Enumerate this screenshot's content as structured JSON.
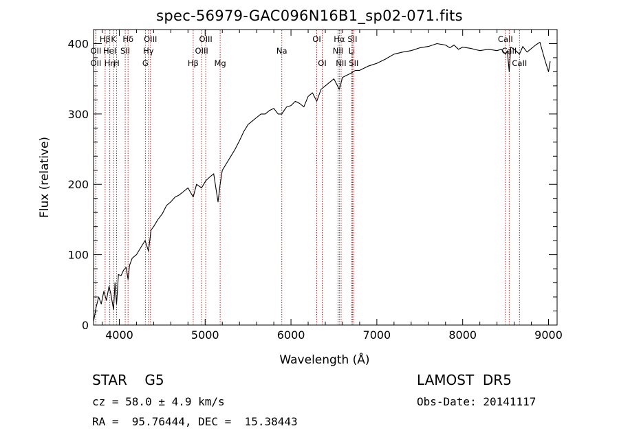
{
  "chart_data": {
    "type": "line",
    "title": "spec-56979-GAC096N16B1_sp02-071.fits",
    "xlabel": "Wavelength (Å)",
    "ylabel": "Flux (relative)",
    "xlim": [
      3700,
      9100
    ],
    "ylim": [
      0,
      420
    ],
    "xticks": [
      4000,
      5000,
      6000,
      7000,
      8000,
      9000
    ],
    "yticks": [
      0,
      100,
      200,
      300,
      400
    ],
    "line_color": "#000000",
    "marker_color": "#b22222",
    "grid": false,
    "series": [
      {
        "x": [
          3700,
          3730,
          3760,
          3790,
          3820,
          3850,
          3880,
          3900,
          3933,
          3950,
          3968,
          3990,
          4020,
          4050,
          4080,
          4102,
          4120,
          4150,
          4200,
          4250,
          4300,
          4340,
          4370,
          4400,
          4450,
          4500,
          4550,
          4600,
          4650,
          4700,
          4750,
          4800,
          4861,
          4900,
          4959,
          5007,
          5050,
          5100,
          5150,
          5175,
          5200,
          5250,
          5300,
          5350,
          5400,
          5450,
          5500,
          5550,
          5600,
          5650,
          5700,
          5750,
          5800,
          5850,
          5893,
          5920,
          5950,
          6000,
          6050,
          6100,
          6150,
          6200,
          6250,
          6300,
          6350,
          6400,
          6450,
          6500,
          6563,
          6600,
          6650,
          6700,
          6750,
          6800,
          6850,
          6900,
          6950,
          7000,
          7100,
          7200,
          7300,
          7400,
          7500,
          7600,
          7700,
          7800,
          7850,
          7900,
          7950,
          8000,
          8100,
          8200,
          8300,
          8400,
          8450,
          8498,
          8520,
          8542,
          8560,
          8600,
          8662,
          8700,
          8750,
          8800,
          8850,
          8900,
          8950,
          9000,
          9020
        ],
        "y": [
          5,
          25,
          40,
          30,
          48,
          35,
          55,
          45,
          22,
          60,
          30,
          72,
          70,
          78,
          82,
          65,
          85,
          95,
          100,
          110,
          120,
          105,
          135,
          140,
          150,
          158,
          170,
          175,
          182,
          185,
          190,
          195,
          182,
          200,
          195,
          205,
          210,
          215,
          175,
          200,
          220,
          230,
          240,
          250,
          262,
          275,
          285,
          290,
          295,
          300,
          300,
          305,
          308,
          300,
          300,
          305,
          310,
          312,
          318,
          315,
          310,
          325,
          330,
          318,
          335,
          340,
          345,
          350,
          335,
          352,
          355,
          358,
          362,
          362,
          365,
          368,
          370,
          372,
          378,
          385,
          388,
          390,
          394,
          396,
          400,
          398,
          394,
          398,
          392,
          395,
          393,
          390,
          392,
          390,
          392,
          385,
          390,
          360,
          395,
          392,
          385,
          396,
          388,
          393,
          398,
          402,
          380,
          360,
          375
        ]
      }
    ],
    "markers": [
      {
        "label": "Hβ",
        "x": 3835,
        "row": 1
      },
      {
        "label": "OII",
        "x": 3727,
        "row": 2
      },
      {
        "label": "OII",
        "x": 3727,
        "row": 3
      },
      {
        "label": "Hη",
        "x": 3889,
        "row": 3
      },
      {
        "label": "K",
        "x": 3934,
        "row": 1
      },
      {
        "label": "HeI",
        "x": 3889,
        "row": 2
      },
      {
        "label": "H",
        "x": 3968,
        "row": 3
      },
      {
        "label": "Hδ",
        "x": 4102,
        "row": 1
      },
      {
        "label": "SII",
        "x": 4069,
        "row": 2
      },
      {
        "label": "OIII",
        "x": 4363,
        "row": 1
      },
      {
        "label": "Hγ",
        "x": 4340,
        "row": 2
      },
      {
        "label": "G",
        "x": 4304,
        "row": 3
      },
      {
        "label": "OIII",
        "x": 5007,
        "row": 1
      },
      {
        "label": "OIII",
        "x": 4959,
        "row": 2
      },
      {
        "label": "Hβ",
        "x": 4861,
        "row": 3
      },
      {
        "label": "Mg",
        "x": 5175,
        "row": 3
      },
      {
        "label": "Na",
        "x": 5893,
        "row": 2
      },
      {
        "label": "OI",
        "x": 6300,
        "row": 1
      },
      {
        "label": "OI",
        "x": 6364,
        "row": 3
      },
      {
        "label": "Hα",
        "x": 6563,
        "row": 1
      },
      {
        "label": "SII",
        "x": 6716,
        "row": 1
      },
      {
        "label": "NII",
        "x": 6548,
        "row": 2
      },
      {
        "label": "Li",
        "x": 6708,
        "row": 2
      },
      {
        "label": "NII",
        "x": 6584,
        "row": 3
      },
      {
        "label": "SII",
        "x": 6731,
        "row": 3
      },
      {
        "label": "CaII",
        "x": 8498,
        "row": 1
      },
      {
        "label": "CaII",
        "x": 8542,
        "row": 2
      },
      {
        "label": "CaII",
        "x": 8662,
        "row": 3
      }
    ]
  },
  "info": {
    "class_label": "STAR    G5",
    "survey_label": "LAMOST  DR5",
    "cz_label": "cz = 58.0 ± 4.9 km/s",
    "obs_date_label": "Obs-Date: 20141117",
    "coords_label": "RA =  95.76444, DEC =  15.38443"
  }
}
